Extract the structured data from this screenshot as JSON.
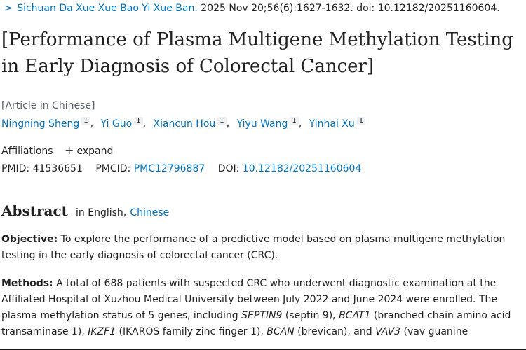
{
  "citation": {
    "chevron": ">",
    "journal": "Sichuan Da Xue Xue Bao Yi Xue Ban.",
    "details": " 2025 Nov 20;56(6):1627-1632. doi: 10.12182/20251160604."
  },
  "article": {
    "title": "[Performance of Plasma Multigene Methylation Testing in Early Diagnosis of Colorectal Cancer]",
    "language_tag": "[Article in Chinese]"
  },
  "authors": [
    {
      "name": "Ningning Sheng",
      "aff": "1"
    },
    {
      "name": "Yi Guo",
      "aff": "1"
    },
    {
      "name": "Xiancun Hou",
      "aff": "1"
    },
    {
      "name": "Yiyu Wang",
      "aff": "1"
    },
    {
      "name": "Yinhai Xu",
      "aff": "1"
    }
  ],
  "affiliations": {
    "label": "Affiliations",
    "expand_icon": "+",
    "expand_label": "expand"
  },
  "identifiers": {
    "pmid_label": "PMID:",
    "pmid": "41536651",
    "pmcid_label": "PMCID:",
    "pmcid": "PMC12796887",
    "doi_label": "DOI:",
    "doi": "10.12182/20251160604"
  },
  "abstract": {
    "heading": "Abstract",
    "in_language": "in English,",
    "alt_language": "Chinese",
    "objective_label": "Objective:",
    "objective_text": " To explore the performance of a predictive model based on plasma multigene methylation testing in the early diagnosis of colorectal cancer (CRC).",
    "methods_label": "Methods:",
    "methods_1": " A total of 688 patients with suspected CRC who underwent diagnostic examination at the Affiliated Hospital of Xuzhou Medical University between July 2022 and June 2024 were enrolled. The plasma methylation status of 5 genes, including ",
    "gene_1": "SEPTIN9",
    "methods_2": " (septin 9), ",
    "gene_2": "BCAT1",
    "methods_3": " (branched chain amino acid transaminase 1), ",
    "gene_3": "IKZF1",
    "methods_4": " (IKAROS family zinc finger 1), ",
    "gene_4": "BCAN",
    "methods_5": " (brevican), and ",
    "gene_5": "VAV3",
    "methods_6": " (vav guanine"
  },
  "colors": {
    "link": "#0071bc",
    "text": "#212121",
    "muted": "#5b616b"
  }
}
